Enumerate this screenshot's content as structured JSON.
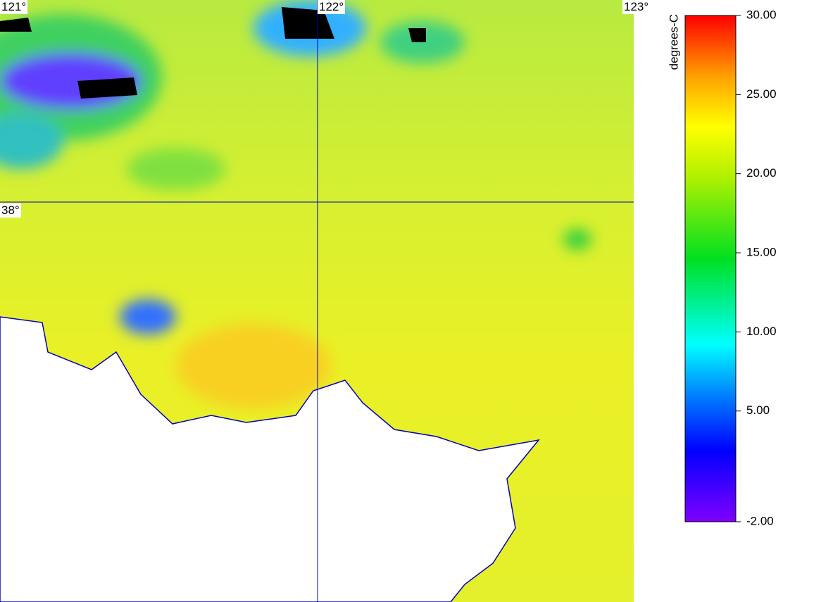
{
  "map": {
    "longitude_labels": [
      "121°",
      "122°",
      "123°"
    ],
    "latitude_labels": [
      "38°"
    ]
  },
  "colorbar": {
    "title": "degrees-C",
    "range": [
      -2,
      30
    ],
    "ticks": [
      {
        "value": 30,
        "label": "30.00"
      },
      {
        "value": 25,
        "label": "25.00"
      },
      {
        "value": 20,
        "label": "20.00"
      },
      {
        "value": 15,
        "label": "15.00"
      },
      {
        "value": 10,
        "label": "10.00"
      },
      {
        "value": 5,
        "label": "5.00"
      },
      {
        "value": -2,
        "label": "-2.00"
      }
    ]
  }
}
